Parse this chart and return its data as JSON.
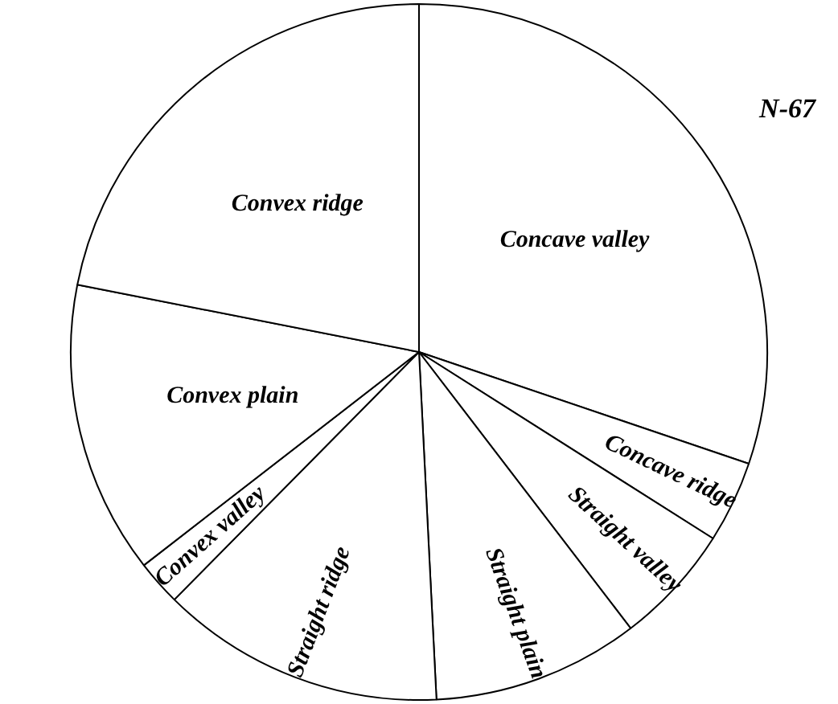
{
  "chart_data": {
    "type": "pie",
    "categories": [
      "Concave valley",
      "Concave ridge",
      "Straight valley",
      "Straight plain",
      "Straight ridge",
      "Convex valley",
      "Convex plain",
      "Convex ridge"
    ],
    "values": [
      30.2,
      3.8,
      5.6,
      9.6,
      13.2,
      2.1,
      13.6,
      21.9
    ],
    "colors": [
      "#ffffff",
      "#ffffff",
      "#ffffff",
      "#ffffff",
      "#ffffff",
      "#ffffff",
      "#ffffff",
      "#ffffff"
    ],
    "annotations": [
      "N-67"
    ],
    "legend": false
  }
}
